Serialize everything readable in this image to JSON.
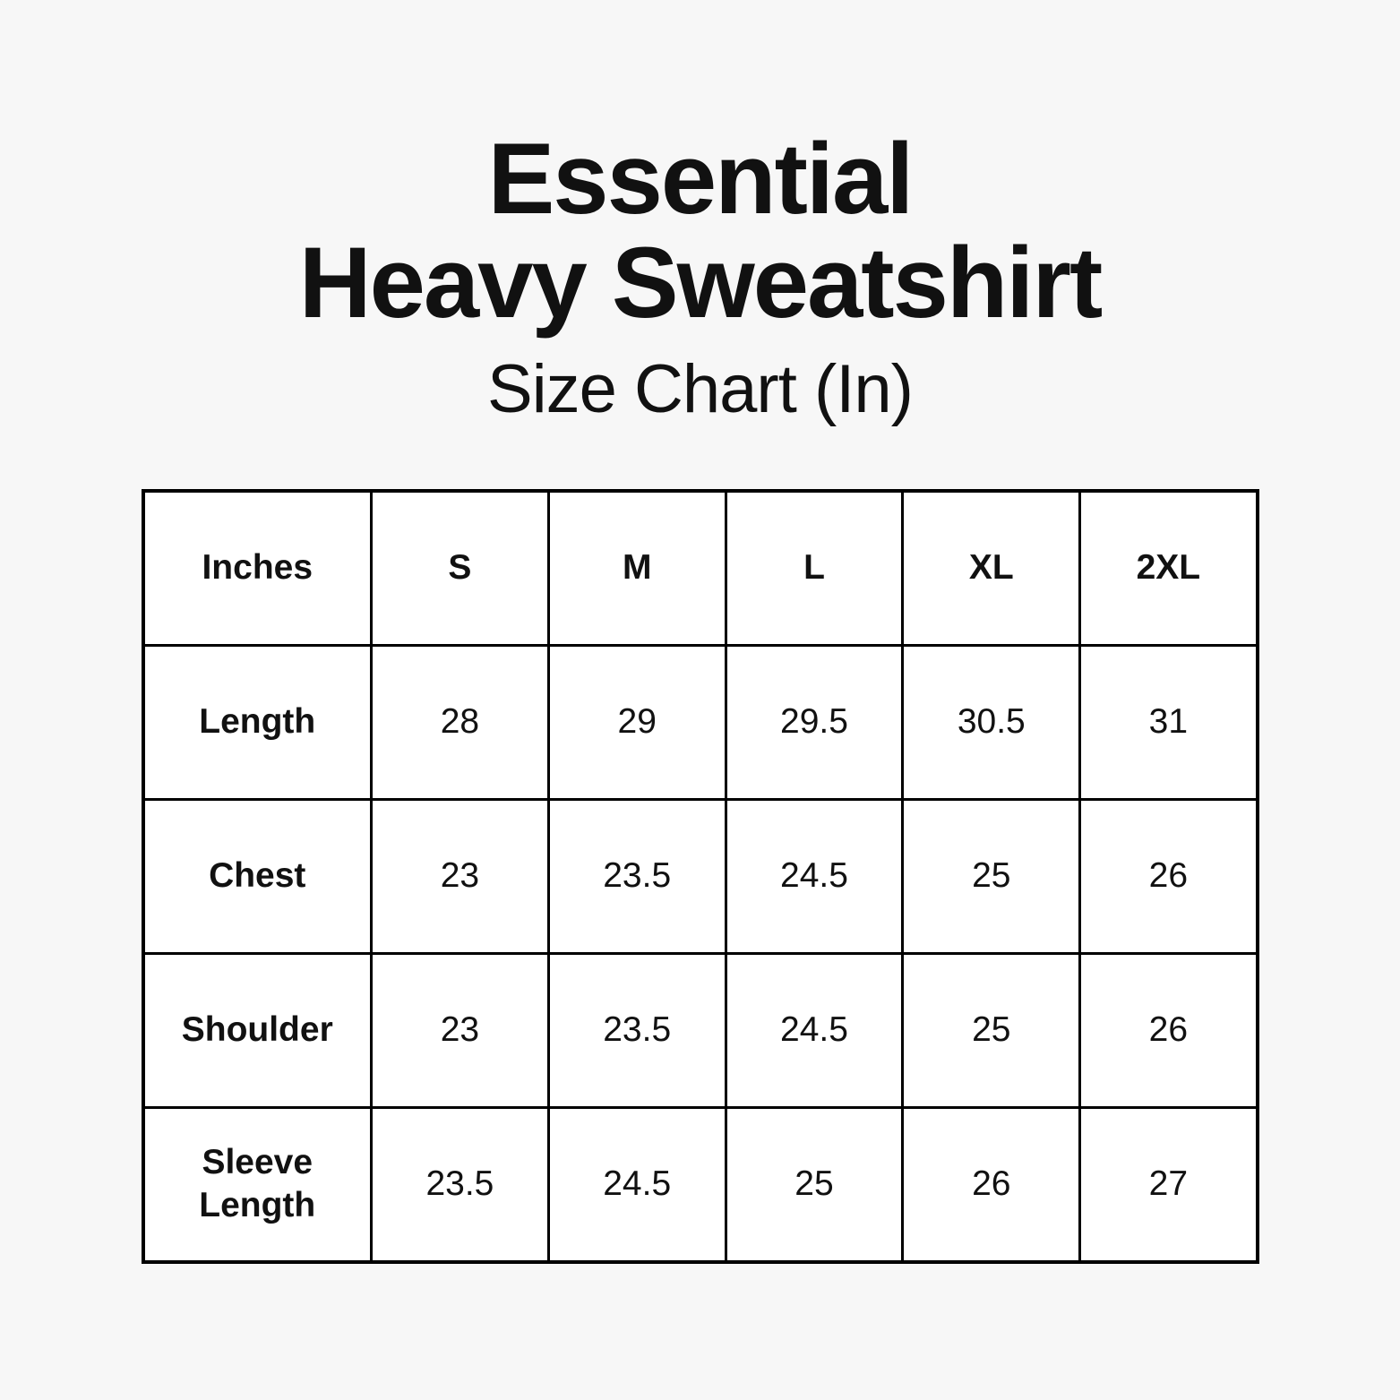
{
  "page": {
    "background_color": "#f7f7f7",
    "text_color": "#111111",
    "cell_background_color": "#ffffff",
    "border_color": "#000000"
  },
  "header": {
    "title_line1": "Essential",
    "title_line2": "Heavy Sweatshirt",
    "subtitle": "Size Chart (In)"
  },
  "chart_data": {
    "type": "table",
    "title": "Essential Heavy Sweatshirt",
    "subtitle": "Size Chart (In)",
    "unit": "inches",
    "columns": [
      "Inches",
      "S",
      "M",
      "L",
      "XL",
      "2XL"
    ],
    "rows": [
      {
        "label": "Length",
        "values": [
          "28",
          "29",
          "29.5",
          "30.5",
          "31"
        ]
      },
      {
        "label": "Chest",
        "values": [
          "23",
          "23.5",
          "24.5",
          "25",
          "26"
        ]
      },
      {
        "label": "Shoulder",
        "values": [
          "23",
          "23.5",
          "24.5",
          "25",
          "26"
        ]
      },
      {
        "label": "Sleeve Length",
        "values": [
          "23.5",
          "24.5",
          "25",
          "26",
          "27"
        ]
      }
    ]
  }
}
